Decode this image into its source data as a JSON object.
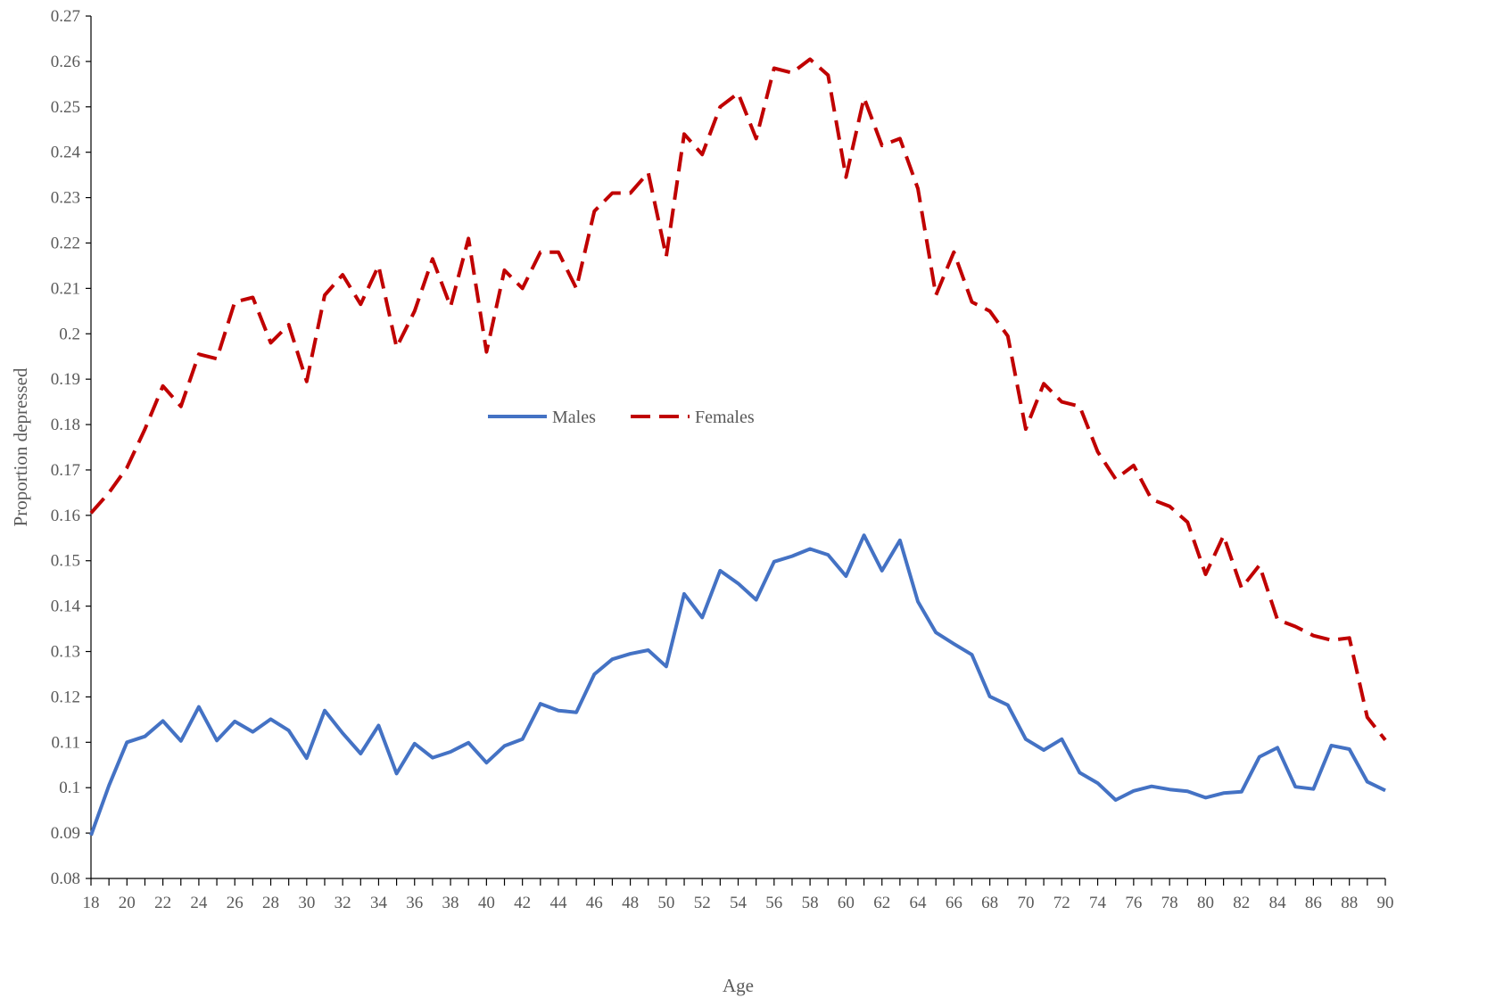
{
  "chart_data": {
    "type": "line",
    "title": "",
    "xlabel": "Age",
    "ylabel": "Proportion depressed",
    "xlim": [
      18,
      90
    ],
    "ylim": [
      0.08,
      0.27
    ],
    "y_ticks": [
      "0.08",
      "0.09",
      "0.1",
      "0.11",
      "0.12",
      "0.13",
      "0.14",
      "0.15",
      "0.16",
      "0.17",
      "0.18",
      "0.19",
      "0.2",
      "0.21",
      "0.22",
      "0.23",
      "0.24",
      "0.25",
      "0.26",
      "0.27"
    ],
    "x_ticks": [
      "18",
      "20",
      "22",
      "24",
      "26",
      "28",
      "30",
      "32",
      "34",
      "36",
      "38",
      "40",
      "42",
      "44",
      "46",
      "48",
      "50",
      "52",
      "54",
      "56",
      "58",
      "60",
      "62",
      "64",
      "66",
      "68",
      "70",
      "72",
      "74",
      "76",
      "78",
      "80",
      "82",
      "84",
      "86",
      "88",
      "90"
    ],
    "grid": false,
    "legend_position": "center",
    "x": [
      18,
      19,
      20,
      21,
      22,
      23,
      24,
      25,
      26,
      27,
      28,
      29,
      30,
      31,
      32,
      33,
      34,
      35,
      36,
      37,
      38,
      39,
      40,
      41,
      42,
      43,
      44,
      45,
      46,
      47,
      48,
      49,
      50,
      51,
      52,
      53,
      54,
      55,
      56,
      57,
      58,
      59,
      60,
      61,
      62,
      63,
      64,
      65,
      66,
      67,
      68,
      69,
      70,
      71,
      72,
      73,
      74,
      75,
      76,
      77,
      78,
      79,
      80,
      81,
      82,
      83,
      84,
      85,
      86,
      87,
      88,
      89,
      90
    ],
    "series": [
      {
        "name": "Males",
        "color": "#4472C4",
        "style": "solid",
        "values": [
          0.0895,
          0.1005,
          0.11,
          0.1113,
          0.1147,
          0.1103,
          0.1178,
          0.1104,
          0.1146,
          0.1123,
          0.1151,
          0.1126,
          0.1065,
          0.117,
          0.112,
          0.1075,
          0.1137,
          0.1031,
          0.1097,
          0.1066,
          0.1079,
          0.1099,
          0.1055,
          0.1092,
          0.1107,
          0.1185,
          0.117,
          0.1166,
          0.125,
          0.1283,
          0.1295,
          0.1303,
          0.1267,
          0.1427,
          0.1375,
          0.1478,
          0.145,
          0.1414,
          0.1498,
          0.151,
          0.1526,
          0.1513,
          0.1466,
          0.1556,
          0.1478,
          0.1545,
          0.141,
          0.1342,
          0.1317,
          0.1293,
          0.1201,
          0.1182,
          0.1107,
          0.1083,
          0.1107,
          0.1033,
          0.101,
          0.0973,
          0.0993,
          0.1003,
          0.0996,
          0.0992,
          0.0978,
          0.0988,
          0.0991,
          0.1068,
          0.1088,
          0.1002,
          0.0997,
          0.1093,
          0.1085,
          0.1013,
          0.0994
        ]
      },
      {
        "name": "Females",
        "color": "#C00000",
        "style": "dashed",
        "values": [
          0.1605,
          0.165,
          0.1705,
          0.179,
          0.1885,
          0.184,
          0.1955,
          0.1945,
          0.207,
          0.208,
          0.198,
          0.202,
          0.1895,
          0.2085,
          0.213,
          0.2065,
          0.215,
          0.197,
          0.205,
          0.2165,
          0.206,
          0.221,
          0.196,
          0.214,
          0.21,
          0.218,
          0.218,
          0.21,
          0.227,
          0.231,
          0.231,
          0.2355,
          0.217,
          0.244,
          0.2395,
          0.25,
          0.253,
          0.243,
          0.2585,
          0.2575,
          0.2605,
          0.257,
          0.2345,
          0.252,
          0.2415,
          0.243,
          0.232,
          0.2085,
          0.218,
          0.207,
          0.205,
          0.1995,
          0.179,
          0.189,
          0.185,
          0.184,
          0.174,
          0.168,
          0.171,
          0.1635,
          0.162,
          0.1585,
          0.147,
          0.1555,
          0.144,
          0.149,
          0.137,
          0.1355,
          0.1335,
          0.1325,
          0.133,
          0.1155,
          0.1105
        ]
      }
    ]
  }
}
